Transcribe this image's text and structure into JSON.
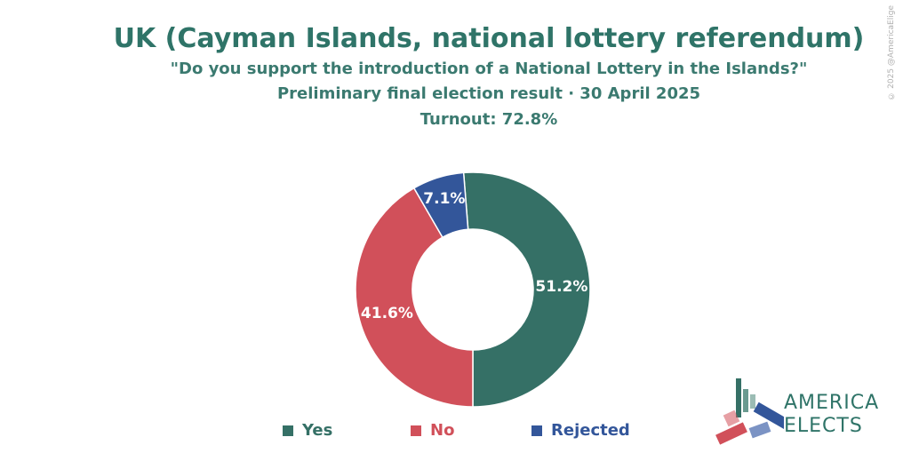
{
  "header": {
    "title": "UK (Cayman Islands, national lottery referendum)",
    "subtitle": "\"Do you support the introduction of a National Lottery in the Islands?\"",
    "subtitle2": "Preliminary final election result · 30 April 2025",
    "turnout": "Turnout: 72.8%"
  },
  "chart_data": {
    "type": "pie",
    "donut": true,
    "categories": [
      "Yes",
      "No",
      "Rejected"
    ],
    "values": [
      51.2,
      41.6,
      7.1
    ],
    "labels": [
      "51.2%",
      "41.6%",
      "7.1%"
    ],
    "colors": [
      "#357066",
      "#d1505a",
      "#33569a"
    ],
    "legend": "bottom"
  },
  "copyright": "© 2025 @AmericaElige",
  "logo": {
    "line1": "AMERICA",
    "line2": "ELECTS"
  }
}
